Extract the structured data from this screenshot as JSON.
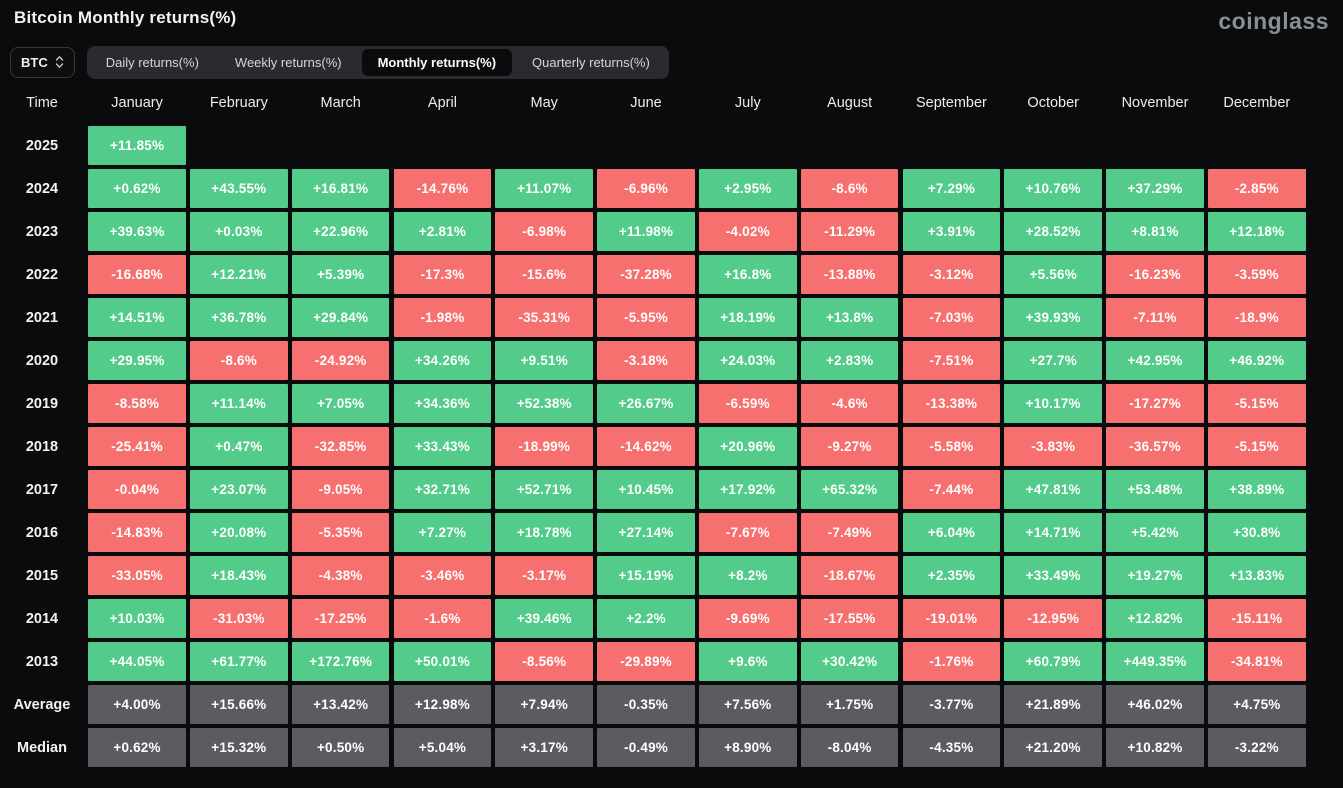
{
  "page": {
    "title": "Bitcoin Monthly returns(%)",
    "logo": "coinglass"
  },
  "toolbar": {
    "symbol_select": {
      "value": "BTC",
      "icon": "up-down-chevron"
    },
    "tabs": [
      {
        "id": "daily",
        "label": "Daily returns(%)",
        "active": false
      },
      {
        "id": "weekly",
        "label": "Weekly returns(%)",
        "active": false
      },
      {
        "id": "monthly",
        "label": "Monthly returns(%)",
        "active": true
      },
      {
        "id": "quarterly",
        "label": "Quarterly returns(%)",
        "active": false
      }
    ]
  },
  "colors": {
    "positive": "#52cb8b",
    "negative": "#f6706f",
    "summary": "#5a5c60",
    "background": "#0a0b0d"
  },
  "chart_data": {
    "type": "heatmap",
    "title": "Bitcoin Monthly returns(%)",
    "columns": [
      "Time",
      "January",
      "February",
      "March",
      "April",
      "May",
      "June",
      "July",
      "August",
      "September",
      "October",
      "November",
      "December"
    ],
    "rows": [
      {
        "label": "2025",
        "kind": "year",
        "values": [
          "+11.85%",
          "",
          "",
          "",
          "",
          "",
          "",
          "",
          "",
          "",
          "",
          ""
        ]
      },
      {
        "label": "2024",
        "kind": "year",
        "values": [
          "+0.62%",
          "+43.55%",
          "+16.81%",
          "-14.76%",
          "+11.07%",
          "-6.96%",
          "+2.95%",
          "-8.6%",
          "+7.29%",
          "+10.76%",
          "+37.29%",
          "-2.85%"
        ]
      },
      {
        "label": "2023",
        "kind": "year",
        "values": [
          "+39.63%",
          "+0.03%",
          "+22.96%",
          "+2.81%",
          "-6.98%",
          "+11.98%",
          "-4.02%",
          "-11.29%",
          "+3.91%",
          "+28.52%",
          "+8.81%",
          "+12.18%"
        ]
      },
      {
        "label": "2022",
        "kind": "year",
        "values": [
          "-16.68%",
          "+12.21%",
          "+5.39%",
          "-17.3%",
          "-15.6%",
          "-37.28%",
          "+16.8%",
          "-13.88%",
          "-3.12%",
          "+5.56%",
          "-16.23%",
          "-3.59%"
        ]
      },
      {
        "label": "2021",
        "kind": "year",
        "values": [
          "+14.51%",
          "+36.78%",
          "+29.84%",
          "-1.98%",
          "-35.31%",
          "-5.95%",
          "+18.19%",
          "+13.8%",
          "-7.03%",
          "+39.93%",
          "-7.11%",
          "-18.9%"
        ]
      },
      {
        "label": "2020",
        "kind": "year",
        "values": [
          "+29.95%",
          "-8.6%",
          "-24.92%",
          "+34.26%",
          "+9.51%",
          "-3.18%",
          "+24.03%",
          "+2.83%",
          "-7.51%",
          "+27.7%",
          "+42.95%",
          "+46.92%"
        ]
      },
      {
        "label": "2019",
        "kind": "year",
        "values": [
          "-8.58%",
          "+11.14%",
          "+7.05%",
          "+34.36%",
          "+52.38%",
          "+26.67%",
          "-6.59%",
          "-4.6%",
          "-13.38%",
          "+10.17%",
          "-17.27%",
          "-5.15%"
        ]
      },
      {
        "label": "2018",
        "kind": "year",
        "values": [
          "-25.41%",
          "+0.47%",
          "-32.85%",
          "+33.43%",
          "-18.99%",
          "-14.62%",
          "+20.96%",
          "-9.27%",
          "-5.58%",
          "-3.83%",
          "-36.57%",
          "-5.15%"
        ]
      },
      {
        "label": "2017",
        "kind": "year",
        "values": [
          "-0.04%",
          "+23.07%",
          "-9.05%",
          "+32.71%",
          "+52.71%",
          "+10.45%",
          "+17.92%",
          "+65.32%",
          "-7.44%",
          "+47.81%",
          "+53.48%",
          "+38.89%"
        ]
      },
      {
        "label": "2016",
        "kind": "year",
        "values": [
          "-14.83%",
          "+20.08%",
          "-5.35%",
          "+7.27%",
          "+18.78%",
          "+27.14%",
          "-7.67%",
          "-7.49%",
          "+6.04%",
          "+14.71%",
          "+5.42%",
          "+30.8%"
        ]
      },
      {
        "label": "2015",
        "kind": "year",
        "values": [
          "-33.05%",
          "+18.43%",
          "-4.38%",
          "-3.46%",
          "-3.17%",
          "+15.19%",
          "+8.2%",
          "-18.67%",
          "+2.35%",
          "+33.49%",
          "+19.27%",
          "+13.83%"
        ]
      },
      {
        "label": "2014",
        "kind": "year",
        "values": [
          "+10.03%",
          "-31.03%",
          "-17.25%",
          "-1.6%",
          "+39.46%",
          "+2.2%",
          "-9.69%",
          "-17.55%",
          "-19.01%",
          "-12.95%",
          "+12.82%",
          "-15.11%"
        ]
      },
      {
        "label": "2013",
        "kind": "year",
        "values": [
          "+44.05%",
          "+61.77%",
          "+172.76%",
          "+50.01%",
          "-8.56%",
          "-29.89%",
          "+9.6%",
          "+30.42%",
          "-1.76%",
          "+60.79%",
          "+449.35%",
          "-34.81%"
        ]
      },
      {
        "label": "Average",
        "kind": "summary",
        "values": [
          "+4.00%",
          "+15.66%",
          "+13.42%",
          "+12.98%",
          "+7.94%",
          "-0.35%",
          "+7.56%",
          "+1.75%",
          "-3.77%",
          "+21.89%",
          "+46.02%",
          "+4.75%"
        ]
      },
      {
        "label": "Median",
        "kind": "summary",
        "values": [
          "+0.62%",
          "+15.32%",
          "+0.50%",
          "+5.04%",
          "+3.17%",
          "-0.49%",
          "+8.90%",
          "-8.04%",
          "-4.35%",
          "+21.20%",
          "+10.82%",
          "-3.22%"
        ]
      }
    ]
  }
}
